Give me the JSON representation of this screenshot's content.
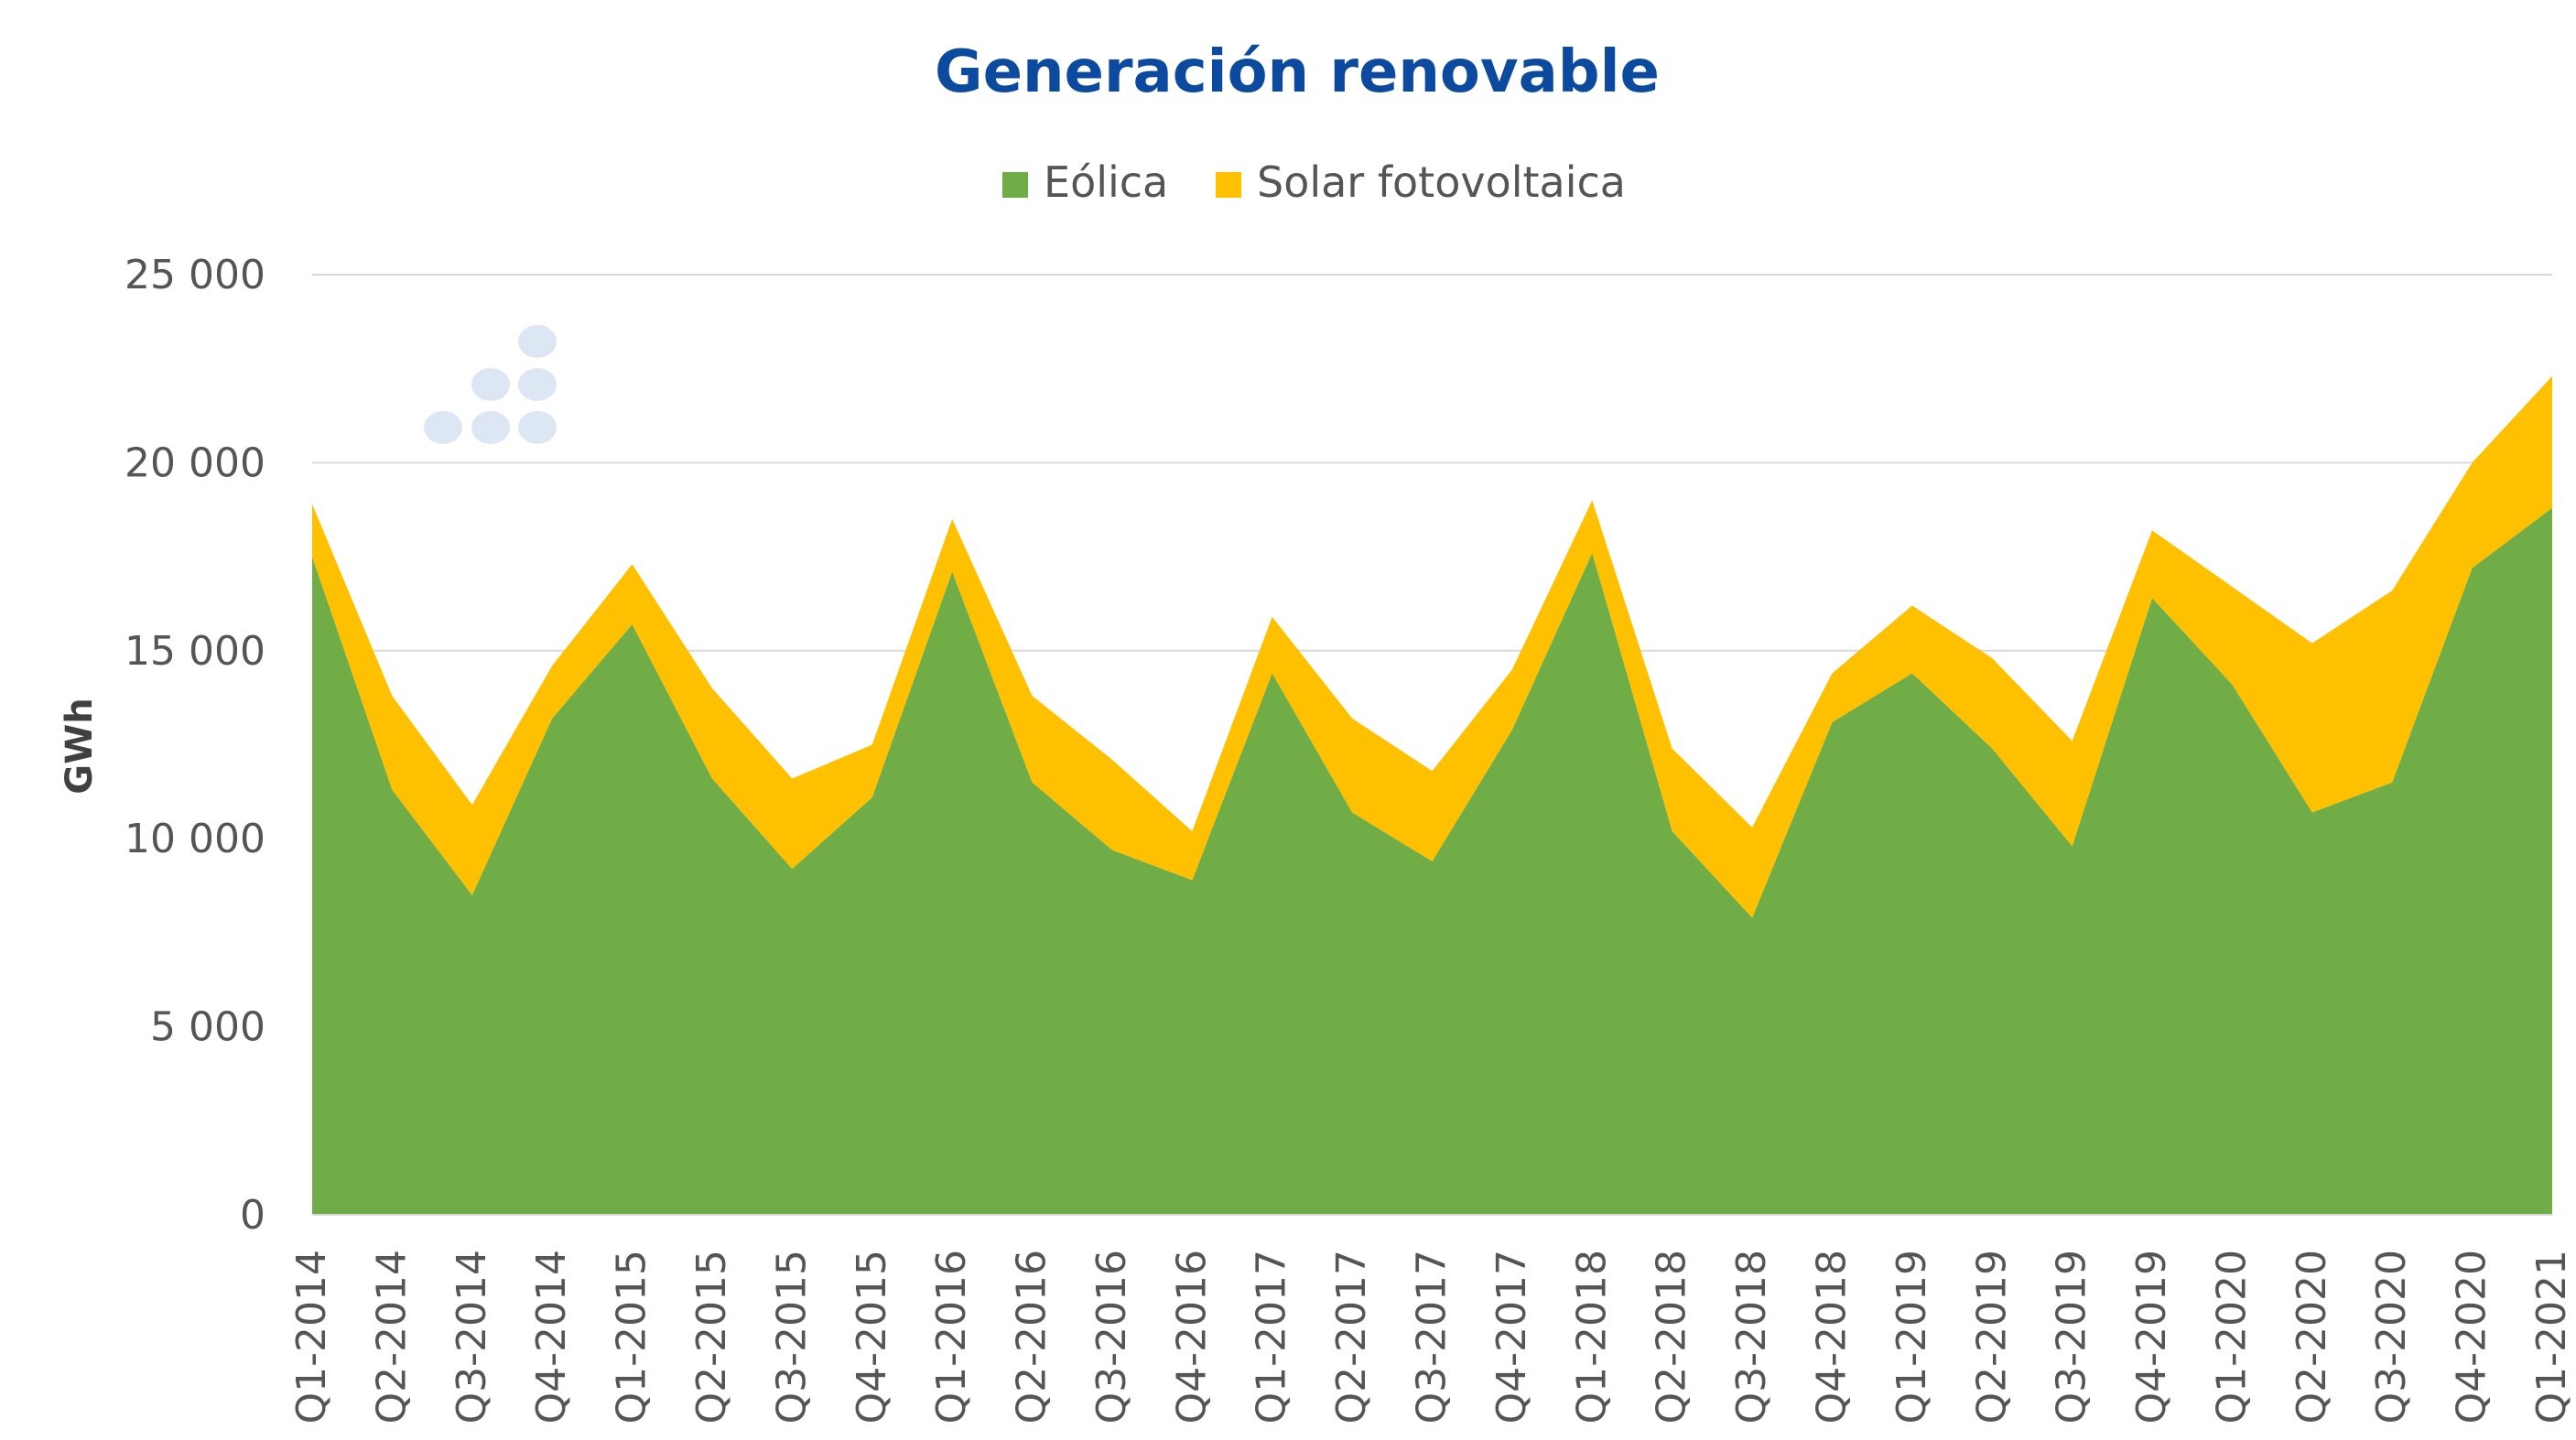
{
  "chart_data": {
    "type": "area",
    "stacked": true,
    "title": "Generación renovable",
    "xlabel": "",
    "ylabel": "GWh",
    "ylim": [
      0,
      25000
    ],
    "yticks": [
      0,
      5000,
      10000,
      15000,
      20000,
      25000
    ],
    "ytick_labels": [
      "0",
      "5 000",
      "10 000",
      "15 000",
      "20 000",
      "25 000"
    ],
    "grid": true,
    "legend_position": "top-center",
    "categories": [
      "Q1-2014",
      "Q2-2014",
      "Q3-2014",
      "Q4-2014",
      "Q1-2015",
      "Q2-2015",
      "Q3-2015",
      "Q4-2015",
      "Q1-2016",
      "Q2-2016",
      "Q3-2016",
      "Q4-2016",
      "Q1-2017",
      "Q2-2017",
      "Q3-2017",
      "Q4-2017",
      "Q1-2018",
      "Q2-2018",
      "Q3-2018",
      "Q4-2018",
      "Q1-2019",
      "Q2-2019",
      "Q3-2019",
      "Q4-2019",
      "Q1-2020",
      "Q2-2020",
      "Q3-2020",
      "Q4-2020",
      "Q1-2021"
    ],
    "series": [
      {
        "name": "Eólica",
        "color": "#70ad47",
        "values": [
          17500,
          11300,
          8500,
          13200,
          15700,
          11600,
          9200,
          11100,
          17100,
          11500,
          9700,
          8900,
          14400,
          10700,
          9400,
          12900,
          17600,
          10200,
          7900,
          13100,
          14400,
          12400,
          9800,
          16400,
          14100,
          10700,
          11500,
          17200,
          18800
        ]
      },
      {
        "name": "Solar fotovoltaica",
        "color": "#ffc000",
        "values": [
          1400,
          2500,
          2400,
          1400,
          1600,
          2400,
          2400,
          1400,
          1400,
          2300,
          2400,
          1300,
          1500,
          2500,
          2400,
          1600,
          1400,
          2200,
          2400,
          1300,
          1800,
          2400,
          2800,
          1800,
          2600,
          4500,
          5100,
          2800,
          3500
        ]
      }
    ]
  },
  "decoration": {
    "icon": "dot-pattern-icon",
    "color": "#dde6f3"
  }
}
